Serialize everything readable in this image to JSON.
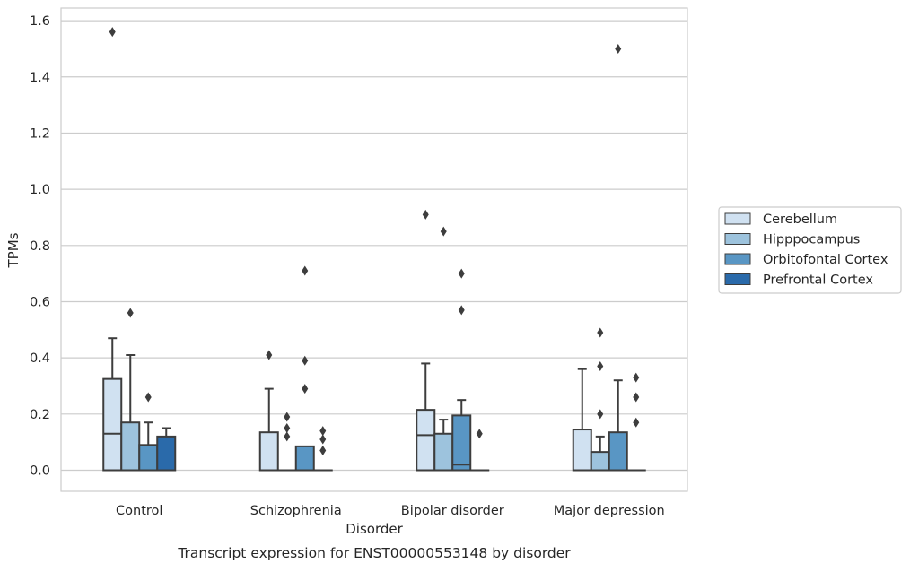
{
  "chart_data": {
    "type": "box",
    "xlabel": "Disorder",
    "ylabel": "TPMs",
    "caption": "Transcript expression for ENST00000553148 by disorder",
    "ylim": [
      -0.075,
      1.645
    ],
    "yticks": [
      0.0,
      0.2,
      0.4,
      0.6,
      0.8,
      1.0,
      1.2,
      1.4,
      1.6
    ],
    "ytick_labels": [
      "0.0",
      "0.2",
      "0.4",
      "0.6",
      "0.8",
      "1.0",
      "1.2",
      "1.4",
      "1.6"
    ],
    "grid": "horizontal",
    "legend_position": "right",
    "categories": [
      "Control",
      "Schizophrenia",
      "Bipolar disorder",
      "Major depression"
    ],
    "series": [
      {
        "name": "Cerebellum",
        "color": "#d0e1f1",
        "boxes": [
          {
            "q1": 0.0,
            "median": 0.13,
            "q3": 0.325,
            "whisker_low": 0.0,
            "whisker_high": 0.47,
            "outliers": [
              1.56
            ]
          },
          {
            "q1": 0.0,
            "median": 0.0,
            "q3": 0.135,
            "whisker_low": 0.0,
            "whisker_high": 0.29,
            "outliers": [
              0.41
            ]
          },
          {
            "q1": 0.0,
            "median": 0.125,
            "q3": 0.215,
            "whisker_low": 0.0,
            "whisker_high": 0.38,
            "outliers": [
              0.91
            ]
          },
          {
            "q1": 0.0,
            "median": 0.0,
            "q3": 0.145,
            "whisker_low": 0.0,
            "whisker_high": 0.36,
            "outliers": []
          }
        ]
      },
      {
        "name": "Hipppocampus",
        "color": "#9dc3dd",
        "boxes": [
          {
            "q1": 0.0,
            "median": 0.0,
            "q3": 0.17,
            "whisker_low": 0.0,
            "whisker_high": 0.41,
            "outliers": [
              0.56
            ]
          },
          {
            "q1": 0.0,
            "median": 0.0,
            "q3": 0.0,
            "whisker_low": 0.0,
            "whisker_high": 0.0,
            "outliers": [
              0.12,
              0.15,
              0.19
            ]
          },
          {
            "q1": 0.0,
            "median": 0.0,
            "q3": 0.13,
            "whisker_low": 0.0,
            "whisker_high": 0.18,
            "outliers": [
              0.85
            ]
          },
          {
            "q1": 0.0,
            "median": 0.0,
            "q3": 0.065,
            "whisker_low": 0.0,
            "whisker_high": 0.12,
            "outliers": [
              0.2,
              0.37,
              0.49
            ]
          }
        ]
      },
      {
        "name": "Orbitofontal Cortex",
        "color": "#5996c4",
        "boxes": [
          {
            "q1": 0.0,
            "median": 0.0,
            "q3": 0.09,
            "whisker_low": 0.0,
            "whisker_high": 0.17,
            "outliers": [
              0.26
            ]
          },
          {
            "q1": 0.0,
            "median": 0.0,
            "q3": 0.085,
            "whisker_low": 0.0,
            "whisker_high": 0.085,
            "outliers": [
              0.29,
              0.39,
              0.71
            ]
          },
          {
            "q1": 0.0,
            "median": 0.02,
            "q3": 0.195,
            "whisker_low": 0.0,
            "whisker_high": 0.25,
            "outliers": [
              0.57,
              0.7
            ]
          },
          {
            "q1": 0.0,
            "median": 0.0,
            "q3": 0.135,
            "whisker_low": 0.0,
            "whisker_high": 0.32,
            "outliers": [
              1.5
            ]
          }
        ]
      },
      {
        "name": "Prefrontal Cortex",
        "color": "#2a6aaa",
        "boxes": [
          {
            "q1": 0.0,
            "median": 0.0,
            "q3": 0.12,
            "whisker_low": 0.0,
            "whisker_high": 0.15,
            "outliers": []
          },
          {
            "q1": 0.0,
            "median": 0.0,
            "q3": 0.0,
            "whisker_low": 0.0,
            "whisker_high": 0.0,
            "outliers": [
              0.07,
              0.11,
              0.14
            ]
          },
          {
            "q1": 0.0,
            "median": 0.0,
            "q3": 0.0,
            "whisker_low": 0.0,
            "whisker_high": 0.0,
            "outliers": [
              0.13
            ]
          },
          {
            "q1": 0.0,
            "median": 0.0,
            "q3": 0.0,
            "whisker_low": 0.0,
            "whisker_high": 0.0,
            "outliers": [
              0.17,
              0.26,
              0.33
            ]
          }
        ]
      }
    ]
  }
}
